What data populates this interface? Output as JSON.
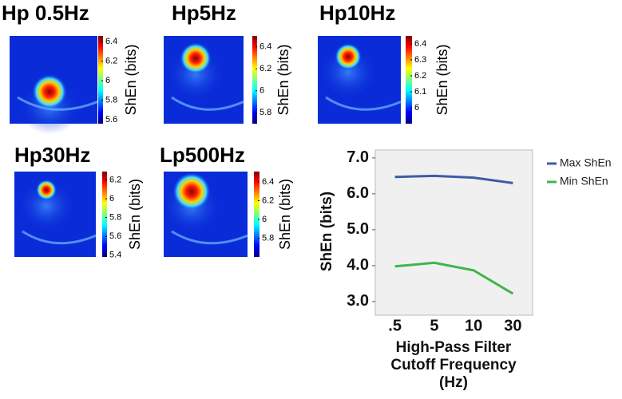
{
  "panels": [
    {
      "title": "Hp 0.5Hz",
      "colorbar_label": "ShEn (bits)",
      "clim": [
        5.56,
        6.46
      ],
      "colorbar_ticks": [
        6.4,
        6.2,
        6,
        5.8,
        5.6
      ]
    },
    {
      "title": "Hp5Hz",
      "colorbar_label": "ShEn (bits)",
      "clim": [
        5.7,
        6.5
      ],
      "colorbar_ticks": [
        6.4,
        6.2,
        6,
        5.8
      ]
    },
    {
      "title": "Hp10Hz",
      "colorbar_label": "ShEn (bits)",
      "clim": [
        5.9,
        6.45
      ],
      "colorbar_ticks": [
        6.4,
        6.3,
        6.2,
        6.1,
        6
      ]
    },
    {
      "title": "Hp30Hz",
      "colorbar_label": "ShEn (bits)",
      "clim": [
        5.38,
        6.29
      ],
      "colorbar_ticks": [
        6.2,
        6,
        5.8,
        5.6,
        5.4
      ]
    },
    {
      "title": "Lp500Hz",
      "colorbar_label": "ShEn (bits)",
      "clim": [
        5.6,
        6.51
      ],
      "colorbar_ticks": [
        6.4,
        6.2,
        6,
        5.8
      ]
    }
  ],
  "chart_data": {
    "type": "line",
    "y_label": "ShEn (bits)",
    "x_label": "High-Pass Filter Cutoff Frequency (Hz)",
    "categories": [
      ".5",
      "5",
      "10",
      "30"
    ],
    "series": [
      {
        "name": "Max ShEn",
        "color": "#3f5ba9",
        "values": [
          6.47,
          6.5,
          6.45,
          6.3
        ]
      },
      {
        "name": "Min ShEn",
        "color": "#3fb54a",
        "values": [
          3.98,
          4.08,
          3.87,
          3.22
        ]
      }
    ],
    "ylim": [
      2.62,
      7.22
    ],
    "yticks": [
      {
        "value": 3,
        "label": "3.0"
      },
      {
        "value": 4,
        "label": "4.0"
      },
      {
        "value": 5,
        "label": "5.0"
      },
      {
        "value": 6,
        "label": "6.0"
      },
      {
        "value": 7,
        "label": "7.0"
      }
    ],
    "legend": "outside-right"
  }
}
